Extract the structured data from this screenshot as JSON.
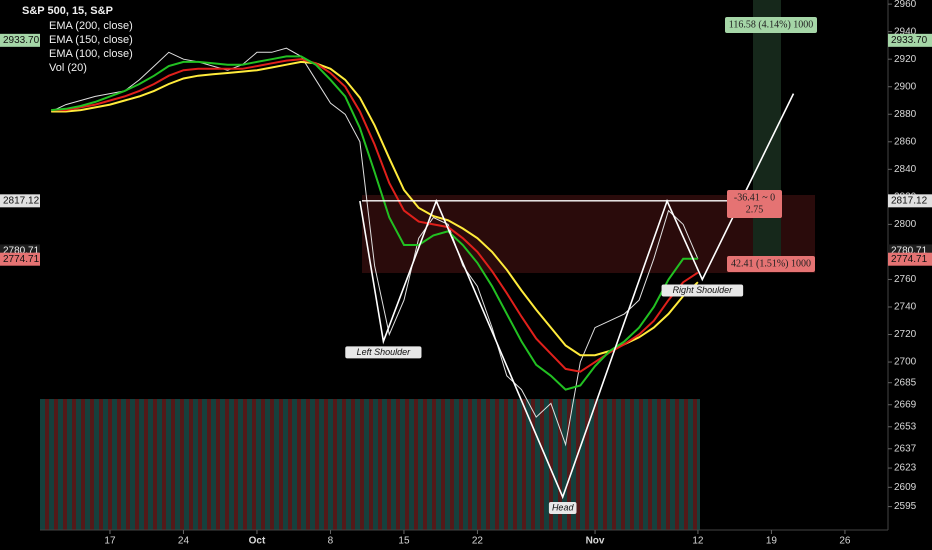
{
  "chart_data": {
    "type": "line",
    "title": "S&P 500, 15, S&P",
    "volume_label": "Vol (20)",
    "x": [
      -4,
      -3,
      -2,
      -1,
      0,
      1,
      2,
      3,
      4,
      5,
      6,
      7,
      8,
      9,
      10,
      11,
      12,
      13,
      14,
      15,
      16,
      17,
      18,
      19,
      20,
      21,
      22,
      23,
      24,
      25,
      26,
      27,
      28,
      29,
      30,
      31,
      32,
      33,
      34,
      35,
      36,
      37,
      38,
      39,
      40
    ],
    "price": {
      "color": "#e0e0e0",
      "values": [
        2882,
        2887,
        2890,
        2893,
        2895,
        2897,
        2905,
        2915,
        2925,
        2920,
        2918,
        2915,
        2912,
        2916,
        2925,
        2925,
        2928,
        2922,
        2905,
        2888,
        2880,
        2860,
        2770,
        2720,
        2745,
        2790,
        2805,
        2800,
        2770,
        2755,
        2725,
        2690,
        2680,
        2660,
        2670,
        2640,
        2700,
        2725,
        2730,
        2735,
        2745,
        2775,
        2810,
        2800,
        2775
      ]
    },
    "series": [
      {
        "name": "EMA (200, close)",
        "color": "#ffeb3b",
        "values": [
          2882,
          2882,
          2883,
          2885,
          2887,
          2890,
          2893,
          2897,
          2902,
          2906,
          2908,
          2909,
          2910,
          2911,
          2912,
          2914,
          2916,
          2918,
          2917,
          2913,
          2905,
          2892,
          2872,
          2848,
          2825,
          2812,
          2806,
          2803,
          2797,
          2790,
          2780,
          2767,
          2752,
          2738,
          2725,
          2712,
          2705,
          2705,
          2708,
          2713,
          2718,
          2725,
          2735,
          2748,
          2758
        ]
      },
      {
        "name": "EMA (150, close)",
        "color": "#e0201b",
        "values": [
          2883,
          2883,
          2885,
          2887,
          2890,
          2893,
          2897,
          2902,
          2908,
          2912,
          2913,
          2913,
          2913,
          2913,
          2915,
          2917,
          2919,
          2920,
          2917,
          2910,
          2900,
          2882,
          2858,
          2830,
          2810,
          2802,
          2800,
          2798,
          2790,
          2780,
          2766,
          2750,
          2733,
          2717,
          2706,
          2695,
          2693,
          2700,
          2707,
          2713,
          2720,
          2730,
          2745,
          2758,
          2765
        ]
      },
      {
        "name": "EMA (100, close)",
        "color": "#22c022",
        "values": [
          2883,
          2884,
          2886,
          2889,
          2893,
          2897,
          2902,
          2908,
          2915,
          2918,
          2918,
          2917,
          2916,
          2916,
          2918,
          2920,
          2922,
          2922,
          2916,
          2905,
          2893,
          2870,
          2838,
          2805,
          2785,
          2785,
          2792,
          2795,
          2785,
          2772,
          2755,
          2735,
          2715,
          2698,
          2690,
          2680,
          2683,
          2697,
          2708,
          2715,
          2725,
          2740,
          2760,
          2775,
          2775
        ]
      }
    ],
    "pattern": {
      "color": "#ffffff",
      "x": [
        17,
        18.6,
        22.2,
        30.8,
        37.9,
        40.3,
        46.5
      ],
      "y": [
        2817,
        2715,
        2817,
        2602,
        2817,
        2760,
        2895
      ],
      "labels": [
        null,
        "Left Shoulder",
        null,
        "Head",
        null,
        "Right Shoulder",
        null
      ]
    },
    "price_labels": [
      {
        "value": 2933.7,
        "label": "2933.70",
        "color": "#a5d6a7"
      },
      {
        "value": 2817.12,
        "label": "2817.12",
        "color": "#e0e0e0"
      },
      {
        "value": 2780.71,
        "label": "2780.71",
        "color": "#1e1e1e"
      },
      {
        "value": 2774.71,
        "label": "2774.71",
        "color": "#e57373"
      }
    ],
    "annotations": [
      {
        "lines": [
          "116.58 (4.14%) 1000"
        ],
        "color": "#a5d6a7"
      },
      {
        "lines": [
          "-36.41 ~ 0",
          "2.75"
        ],
        "color": "#e57373"
      },
      {
        "lines": [
          "42.41 (1.51%) 1000"
        ],
        "color": "#e57373"
      }
    ],
    "xlim": [
      -4.76,
      52.93
    ],
    "ylim": [
      2578,
      2963
    ],
    "xticks": [
      {
        "value": 0,
        "label": "17"
      },
      {
        "value": 5,
        "label": "24"
      },
      {
        "value": 10,
        "label": "Oct"
      },
      {
        "value": 15,
        "label": "8"
      },
      {
        "value": 20,
        "label": "15"
      },
      {
        "value": 25,
        "label": "22"
      },
      {
        "value": 33,
        "label": "Nov"
      },
      {
        "value": 40,
        "label": "12"
      },
      {
        "value": 45,
        "label": "19"
      },
      {
        "value": 50,
        "label": "26"
      }
    ],
    "yticks": [
      2960,
      2940,
      2920,
      2900,
      2880,
      2860,
      2840,
      2820,
      2800,
      2780,
      2760,
      2740,
      2720,
      2700,
      2685,
      2669,
      2653,
      2637,
      2623,
      2609,
      2595
    ],
    "grid": false
  }
}
